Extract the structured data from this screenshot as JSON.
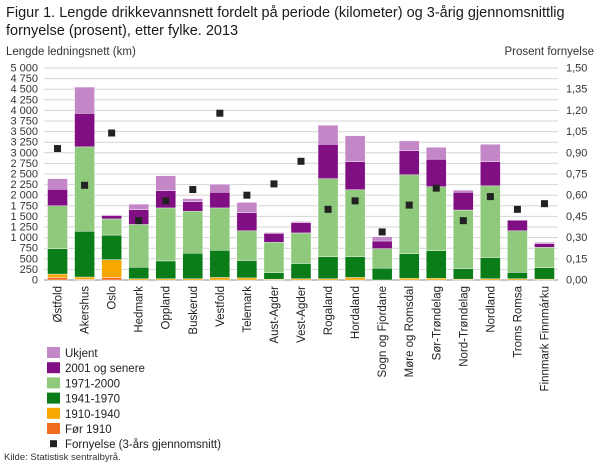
{
  "figure": {
    "title_prefix": "Figur 1.",
    "title": "Lengde drikkevannsnett fordelt på periode (kilometer) og 3-årig gjennomsnittlig fornyelse (prosent), etter fylke. 2013",
    "source": "Kilde: Statistisk sentralbyrå."
  },
  "chart_data": {
    "type": "bar",
    "stacked": true,
    "left_axis_title": "Lengde ledningsnett (km)",
    "right_axis_title": "Prosent fornyelse",
    "ylim": [
      0,
      5000
    ],
    "y2lim": [
      0,
      1.5
    ],
    "yticks": [
      "0",
      "250",
      "500",
      "750",
      "1 000",
      "1 250",
      "1 500",
      "1 750",
      "2 000",
      "2 250",
      "2 500",
      "2 750",
      "3 000",
      "3 250",
      "3 500",
      "3 750",
      "4 000",
      "4 250",
      "4 500",
      "4 750",
      "5 000"
    ],
    "y2ticks": [
      "0,00",
      "0,15",
      "0,30",
      "0,45",
      "0,60",
      "0,75",
      "0,90",
      "1,05",
      "1,20",
      "1,35",
      "1,50"
    ],
    "grid": true,
    "categories": [
      "Østfold",
      "Akershus",
      "Oslo",
      "Hedmark",
      "Oppland",
      "Buskerud",
      "Vestfold",
      "Telemark",
      "Aust-Agder",
      "Vest-Agder",
      "Rogaland",
      "Hordaland",
      "Sogn og Fjordane",
      "Møre og Romsdal",
      "Sør-Trøndelag",
      "Nord-Trøndelag",
      "Nordland",
      "Troms Romsa",
      "Finnmark Finnmárku"
    ],
    "series": [
      {
        "name": "Før 1910",
        "color": "#f06d1f",
        "values": [
          60,
          20,
          60,
          0,
          0,
          0,
          0,
          0,
          0,
          0,
          0,
          0,
          0,
          0,
          0,
          0,
          0,
          0,
          0
        ]
      },
      {
        "name": "1910-1940",
        "color": "#f6a800",
        "values": [
          80,
          50,
          420,
          30,
          30,
          30,
          60,
          50,
          20,
          30,
          30,
          60,
          0,
          40,
          40,
          20,
          30,
          30,
          20
        ]
      },
      {
        "name": "1941-1970",
        "color": "#0a7d18",
        "values": [
          600,
          1080,
          580,
          270,
          420,
          600,
          640,
          410,
          150,
          360,
          520,
          490,
          280,
          580,
          650,
          250,
          500,
          150,
          270
        ]
      },
      {
        "name": "1971-2000",
        "color": "#8ec97c",
        "values": [
          1010,
          1990,
          380,
          1010,
          1250,
          990,
          1000,
          700,
          720,
          720,
          1840,
          1580,
          460,
          1860,
          1510,
          1380,
          1690,
          980,
          480
        ]
      },
      {
        "name": "2001 og senere",
        "color": "#800f84",
        "values": [
          390,
          790,
          80,
          350,
          410,
          230,
          370,
          430,
          210,
          240,
          810,
          660,
          180,
          570,
          650,
          420,
          570,
          250,
          90
        ]
      },
      {
        "name": "Ukjent",
        "color": "#c387c8",
        "values": [
          250,
          620,
          20,
          130,
          350,
          70,
          190,
          240,
          20,
          30,
          450,
          610,
          100,
          230,
          280,
          50,
          410,
          0,
          30
        ]
      }
    ],
    "line_series": {
      "name": "Fornyelse  (3-års gjennomsnitt)",
      "color": "#222222",
      "axis": "right",
      "values": [
        0.93,
        0.67,
        1.04,
        0.42,
        0.56,
        0.64,
        1.18,
        0.6,
        0.68,
        0.84,
        0.5,
        0.56,
        0.34,
        0.53,
        0.65,
        0.42,
        0.59,
        0.5,
        0.54
      ]
    },
    "legend_order": [
      "Ukjent",
      "2001 og senere",
      "1971-2000",
      "1941-1970",
      "1910-1940",
      "Før 1910",
      "Fornyelse  (3-års gjennomsnitt)"
    ],
    "legend_position": "bottom-left"
  }
}
